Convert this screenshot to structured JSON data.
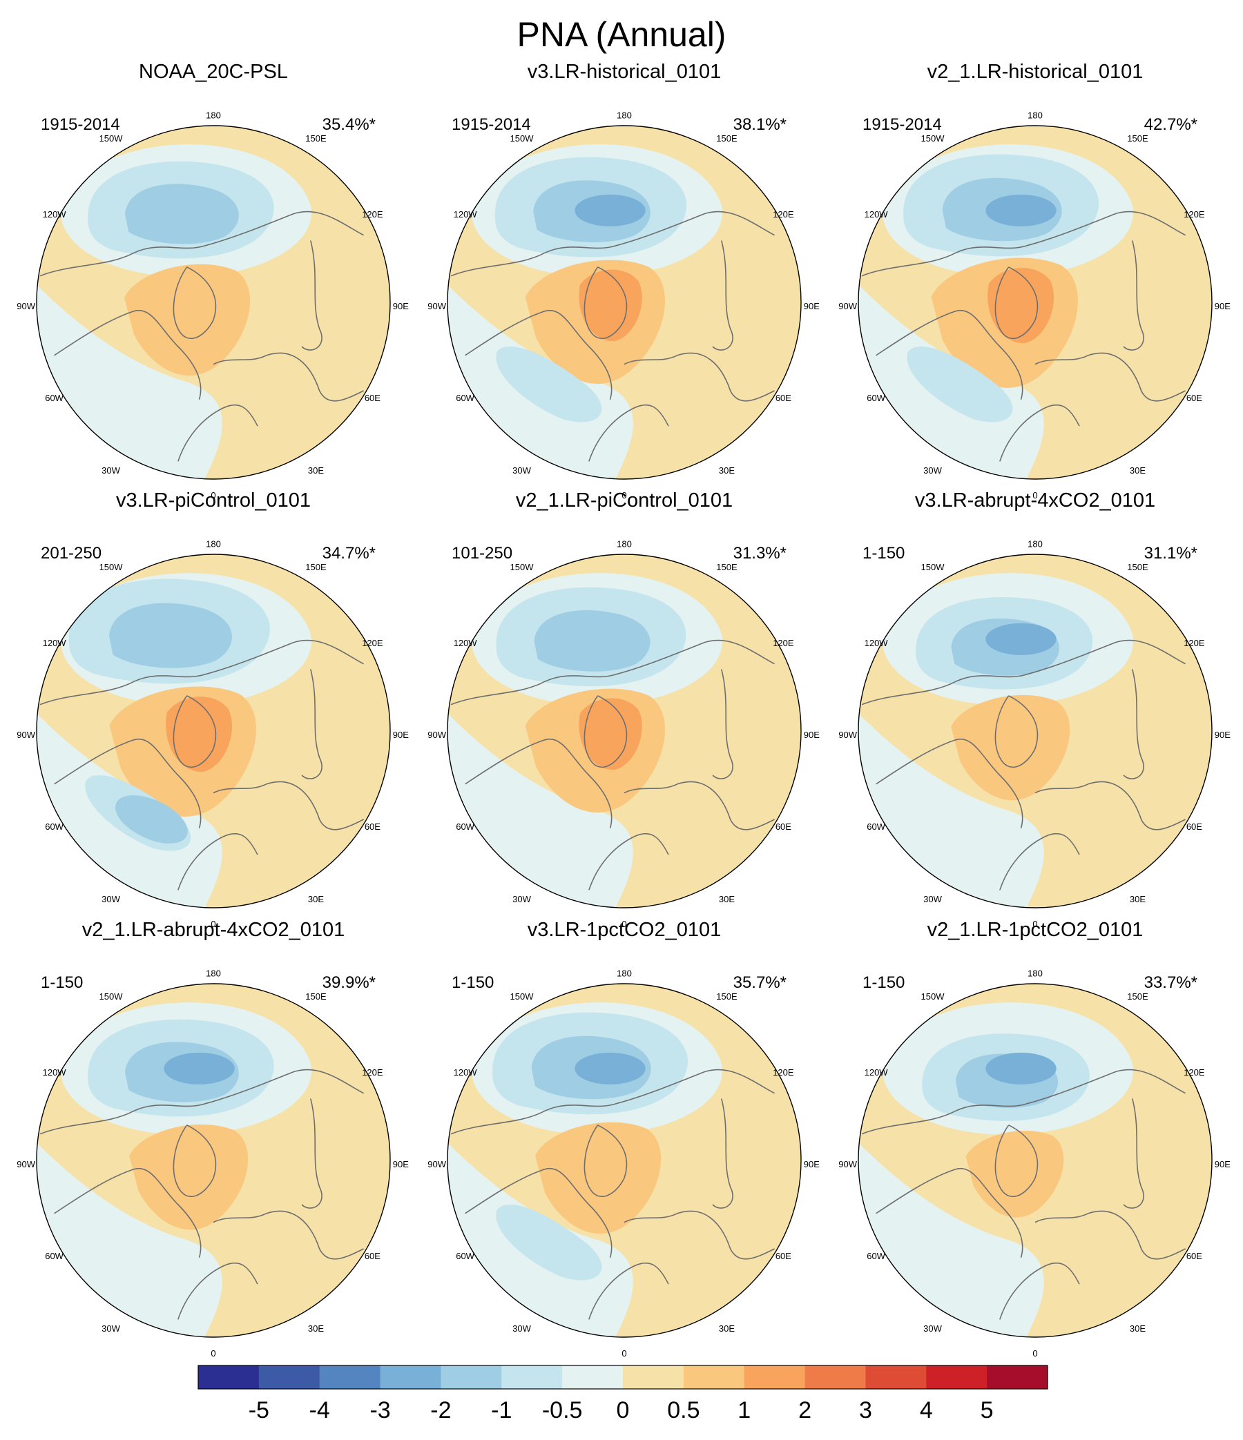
{
  "figure_title": "PNA (Annual)",
  "lon_labels": {
    "top": "180",
    "ne": "150E",
    "e1": "120E",
    "e2": "90E",
    "e3": "60E",
    "se": "30E",
    "bottom": "0",
    "sw": "30W",
    "w3": "60W",
    "w2": "90W",
    "w1": "120W",
    "nw": "150W"
  },
  "panels": [
    {
      "title": "NOAA_20C-PSL",
      "years": "1915-2014",
      "variance": "35.4%*"
    },
    {
      "title": "v3.LR-historical_0101",
      "years": "1915-2014",
      "variance": "38.1%*"
    },
    {
      "title": "v2_1.LR-historical_0101",
      "years": "1915-2014",
      "variance": "42.7%*"
    },
    {
      "title": "v3.LR-piControl_0101",
      "years": "201-250",
      "variance": "34.7%*"
    },
    {
      "title": "v2_1.LR-piControl_0101",
      "years": "101-250",
      "variance": "31.3%*"
    },
    {
      "title": "v3.LR-abrupt-4xCO2_0101",
      "years": "1-150",
      "variance": "31.1%*"
    },
    {
      "title": "v2_1.LR-abrupt-4xCO2_0101",
      "years": "1-150",
      "variance": "39.9%*"
    },
    {
      "title": "v3.LR-1pctCO2_0101",
      "years": "1-150",
      "variance": "35.7%*"
    },
    {
      "title": "v2_1.LR-1pctCO2_0101",
      "years": "1-150",
      "variance": "33.7%*"
    }
  ],
  "colorbar": {
    "labels": [
      "-5",
      "-4",
      "-3",
      "-2",
      "-1",
      "-0.5",
      "0",
      "0.5",
      "1",
      "2",
      "3",
      "4",
      "5"
    ],
    "colors": [
      "#2b2f91",
      "#3d5aa6",
      "#5585c1",
      "#79b0d7",
      "#9fcde4",
      "#c4e5ee",
      "#e4f2f1",
      "#f6e2a8",
      "#fac77f",
      "#f8a45c",
      "#ef7b48",
      "#df4c35",
      "#cd2127",
      "#a60d2a"
    ]
  },
  "colors": {
    "neg1": "#79b0d7",
    "neg2": "#9fcde4",
    "neg3": "#c4e5ee",
    "neg4": "#e4f2f1",
    "pos1": "#f6e2a8",
    "pos2": "#fac77f",
    "pos3": "#f8a45c",
    "coast": "#6e6e6e"
  }
}
